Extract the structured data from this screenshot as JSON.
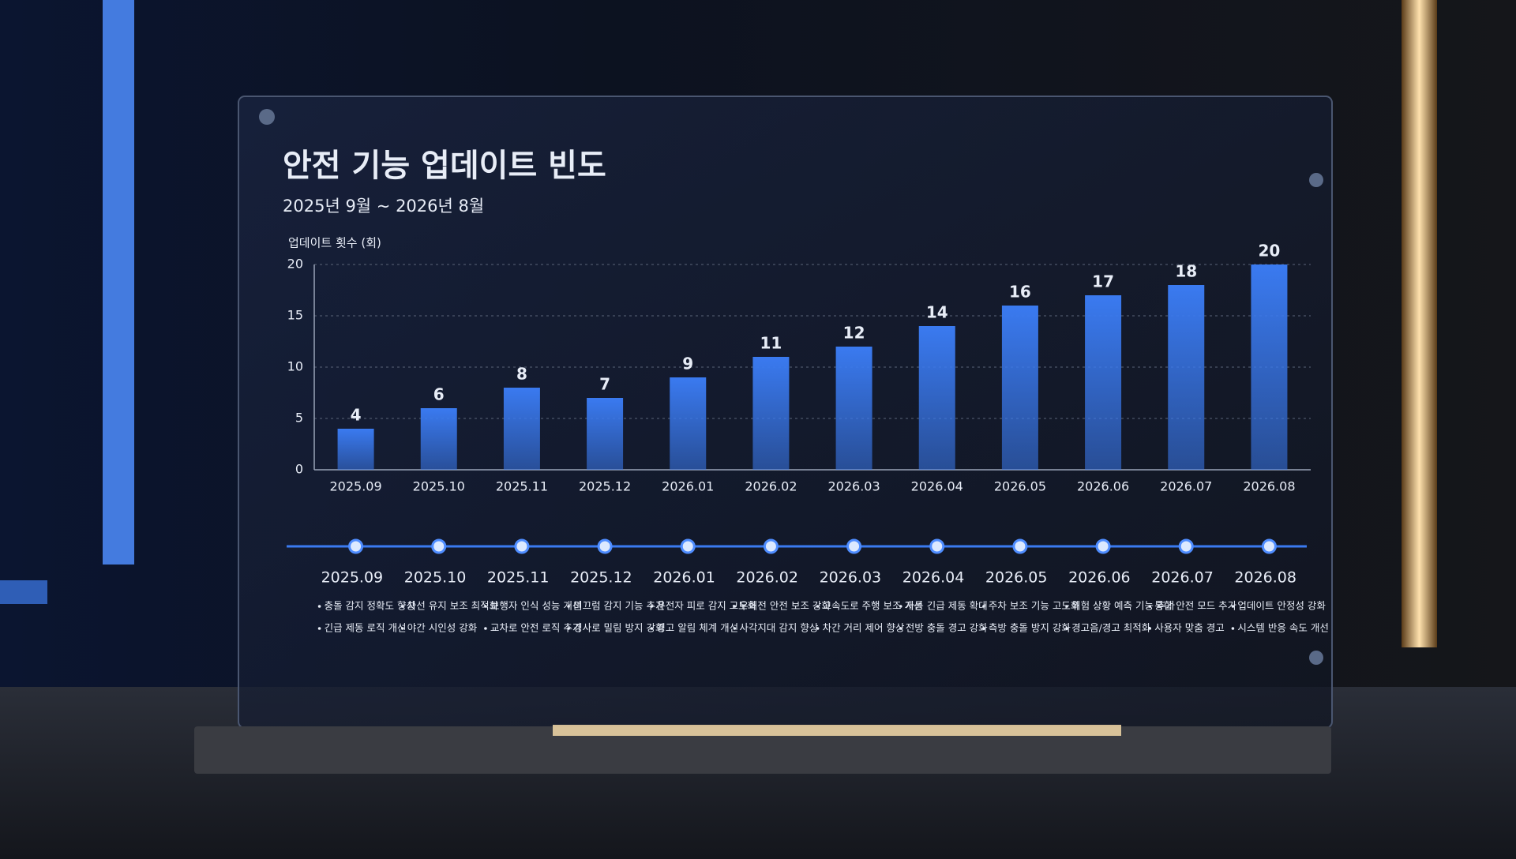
{
  "chart_data": {
    "type": "bar",
    "title": "안전 기능 업데이트 빈도",
    "subtitle": "2025년 9월 ~ 2026년 8월",
    "y_label": "업데이트 횟수 (회)",
    "categories": [
      "2025.09",
      "2025.10",
      "2025.11",
      "2025.12",
      "2026.01",
      "2026.02",
      "2026.03",
      "2026.04",
      "2026.05",
      "2026.06",
      "2026.07",
      "2026.08"
    ],
    "values": [
      4,
      6,
      8,
      7,
      9,
      11,
      12,
      14,
      16,
      17,
      18,
      20
    ],
    "color": "#3a7af0",
    "ylim": [
      0,
      20
    ],
    "yticks": [
      0,
      5,
      10,
      15,
      20
    ],
    "grid": true
  },
  "timeline": {
    "notes": [
      [
        "충돌 감지 정확도 향상",
        "긴급 제동 로직 개선"
      ],
      [
        "차선 유지 보조 최적화",
        "야간 시인성 강화"
      ],
      [
        "보행자 인식 성능 개선",
        "교차로 안전 로직 추가"
      ],
      [
        "미끄럼 감지 기능 추가",
        "경사로 밀림 방지 강화"
      ],
      [
        "운전자 피로 감지 고도화",
        "경고 알림 체계 개선"
      ],
      [
        "우회전 안전 보조 강화",
        "사각지대 감지 향상"
      ],
      [
        "고속도로 주행 보조 개선",
        "차간 거리 제어 향상"
      ],
      [
        "자동 긴급 제동 확대",
        "전방 충돌 경고 강화"
      ],
      [
        "주차 보조 기능 고도화",
        "측방 충돌 방지 강화"
      ],
      [
        "위험 상황 예측 기능 추가",
        "경고음/경고 최적화"
      ],
      [
        "통합 안전 모드 추가",
        "사용자 맞춤 경고"
      ],
      [
        "업데이트 안정성 강화",
        "시스템 반응 속도 개선"
      ]
    ]
  }
}
